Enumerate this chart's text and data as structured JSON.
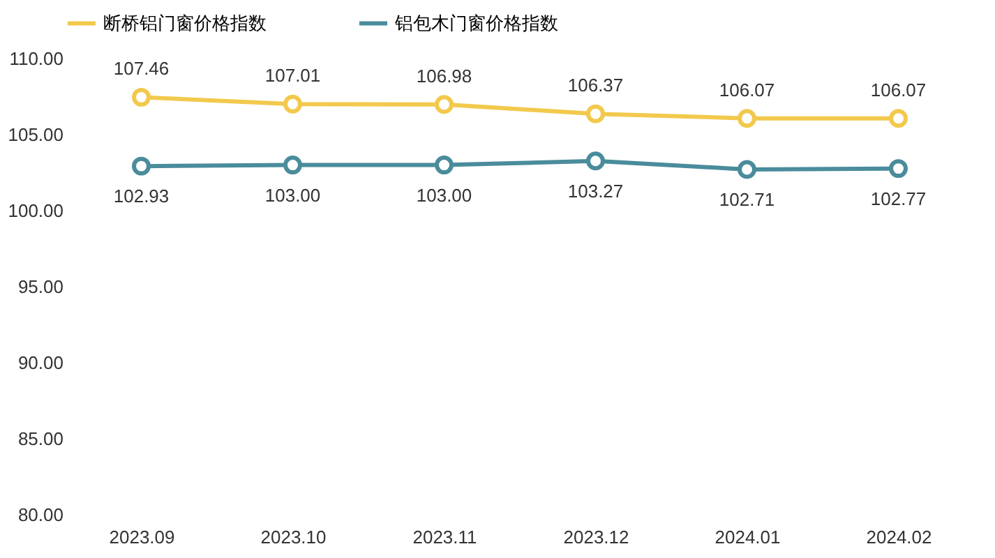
{
  "chart_data": {
    "type": "line",
    "categories": [
      "2023.09",
      "2023.10",
      "2023.11",
      "2023.12",
      "2024.01",
      "2024.02"
    ],
    "series": [
      {
        "name": "断桥铝门窗价格指数",
        "color": "#f2c94c",
        "values": [
          107.46,
          107.01,
          106.98,
          106.37,
          106.07,
          106.07
        ],
        "value_labels": [
          "107.46",
          "107.01",
          "106.98",
          "106.37",
          "106.07",
          "106.07"
        ]
      },
      {
        "name": "铝包木门窗价格指数",
        "color": "#4a8c9c",
        "values": [
          102.93,
          103.0,
          103.0,
          103.27,
          102.71,
          102.77
        ],
        "value_labels": [
          "102.93",
          "103.00",
          "103.00",
          "103.27",
          "102.71",
          "102.77"
        ]
      }
    ],
    "ylim": [
      80,
      110
    ],
    "yticks": [
      {
        "value": 80,
        "label": "80.00"
      },
      {
        "value": 85,
        "label": "85.00"
      },
      {
        "value": 90,
        "label": "90.00"
      },
      {
        "value": 95,
        "label": "95.00"
      },
      {
        "value": 100,
        "label": "100.00"
      },
      {
        "value": 105,
        "label": "105.00"
      },
      {
        "value": 110,
        "label": "110.00"
      }
    ],
    "grid": false,
    "legend": "top",
    "marker": "circle",
    "line_style": "solid"
  }
}
